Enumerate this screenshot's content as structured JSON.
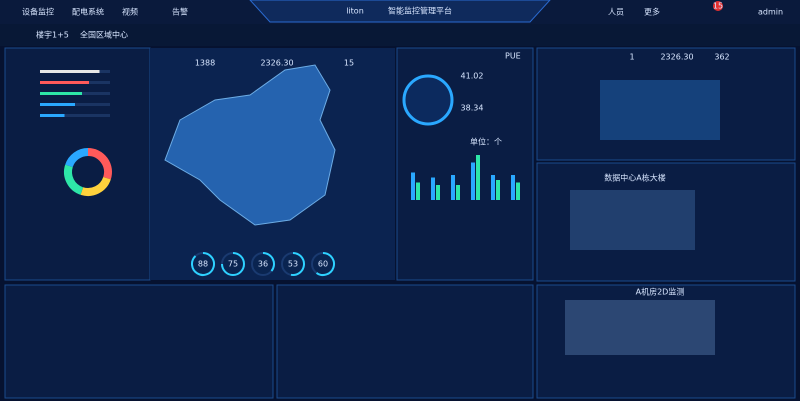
{
  "header": {
    "nav": [
      "设备监控",
      "配电系统",
      "视频",
      "告警"
    ],
    "logo": "liton",
    "title": "智能监控管理平台",
    "user_items": [
      "人员",
      "更多"
    ],
    "badge": "15",
    "user": "admin"
  },
  "toolbar": {
    "building": "楼宇1+5",
    "breadcrumb": "全国区域中心"
  },
  "kpis": [
    "1388",
    "2326.30",
    "15"
  ],
  "ranking_bars": {
    "values": [
      85,
      70,
      60,
      50,
      35
    ],
    "colors": [
      "#e6e6e6",
      "#ff5a5a",
      "#2ee6a8",
      "#2aa8ff",
      "#2aa8ff"
    ]
  },
  "donut": {
    "values": [
      30,
      25,
      25,
      20
    ],
    "colors": [
      "#ff5a5a",
      "#ffd23c",
      "#2ee6a8",
      "#2aa8ff"
    ]
  },
  "pue": {
    "label": "PUE",
    "readings": [
      "41.02",
      "38.34"
    ]
  },
  "alarm_chart": {
    "unit": "单位：个",
    "ylim": [
      0,
      100
    ],
    "series": [
      {
        "color": "#2aa8ff",
        "values": [
          55,
          45,
          50,
          75,
          50,
          50
        ]
      },
      {
        "color": "#2ee6a8",
        "values": [
          35,
          30,
          30,
          90,
          40,
          35
        ]
      }
    ]
  },
  "rings": [
    88,
    75,
    36,
    53,
    60
  ],
  "right_stats": [
    "1",
    "2326.30",
    "362"
  ],
  "building_title": "数据中心A栋大楼",
  "room_title": "A机房2D监测"
}
